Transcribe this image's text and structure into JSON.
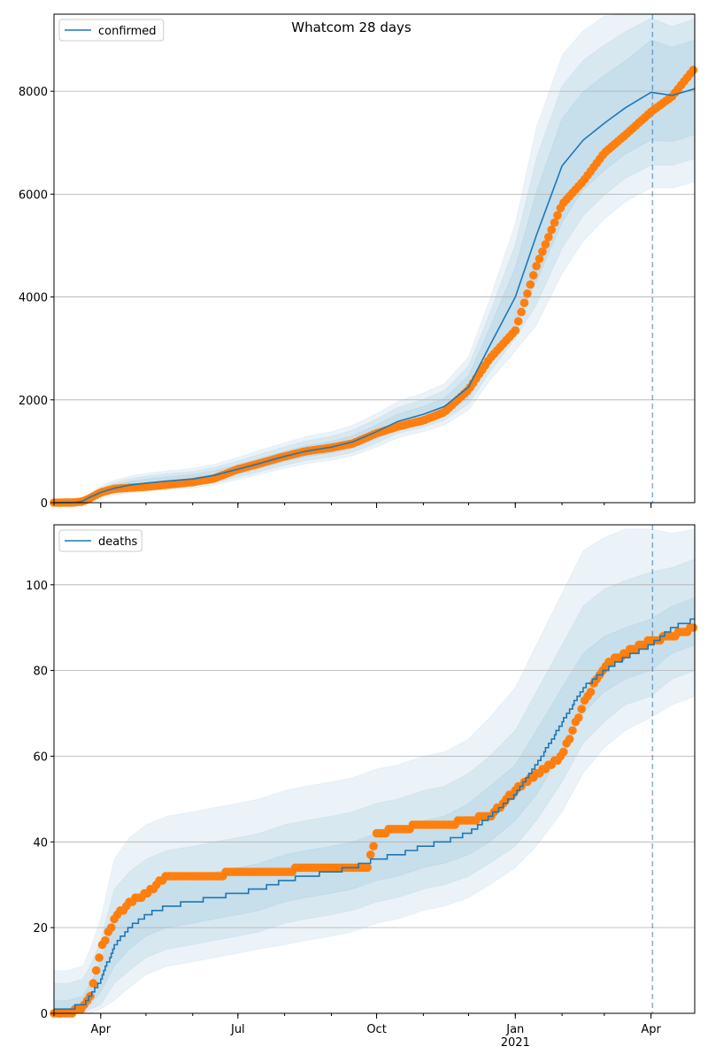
{
  "chart_data": [
    {
      "type": "line",
      "title": "Whatcom 28 days",
      "legend": {
        "placement": "top-left",
        "entries": [
          "confirmed"
        ]
      },
      "grid": "horizontal",
      "xlim": [
        "2020-03-01",
        "2021-04-30"
      ],
      "ylim": [
        0,
        9500
      ],
      "yticks": [
        0,
        2000,
        4000,
        6000,
        8000
      ],
      "xticks": [
        {
          "date": "2020-04-01",
          "label": "Apr",
          "sub": ""
        },
        {
          "date": "2020-07-01",
          "label": "Jul",
          "sub": ""
        },
        {
          "date": "2020-10-01",
          "label": "Oct",
          "sub": ""
        },
        {
          "date": "2021-01-01",
          "label": "Jan",
          "sub": "2021"
        },
        {
          "date": "2021-04-01",
          "label": "Apr",
          "sub": ""
        }
      ],
      "forecast_start": "2021-04-02",
      "colors": {
        "model": "#1f77b4",
        "observed": "#ff7f0e",
        "band": "#1f77b4"
      },
      "series": [
        {
          "name": "confirmed",
          "x": [
            "2020-03-01",
            "2020-03-15",
            "2020-03-20",
            "2020-03-25",
            "2020-04-01",
            "2020-04-10",
            "2020-04-20",
            "2020-05-01",
            "2020-05-15",
            "2020-06-01",
            "2020-06-15",
            "2020-07-01",
            "2020-07-15",
            "2020-08-01",
            "2020-08-15",
            "2020-09-01",
            "2020-09-15",
            "2020-10-01",
            "2020-10-15",
            "2020-11-01",
            "2020-11-15",
            "2020-12-01",
            "2020-12-15",
            "2021-01-01",
            "2021-01-15",
            "2021-02-01",
            "2021-02-15",
            "2021-03-01",
            "2021-03-15",
            "2021-04-01",
            "2021-04-15",
            "2021-04-30"
          ],
          "y": [
            0,
            5,
            30,
            110,
            200,
            280,
            340,
            380,
            420,
            460,
            530,
            650,
            760,
            900,
            1000,
            1080,
            1180,
            1380,
            1580,
            1720,
            1870,
            2250,
            3050,
            4000,
            5200,
            6550,
            7050,
            7380,
            7680,
            7980,
            7920,
            8050
          ]
        },
        {
          "name": "observed confirmed",
          "x": [
            "2020-03-01",
            "2020-03-15",
            "2020-03-20",
            "2020-03-25",
            "2020-04-01",
            "2020-04-10",
            "2020-04-20",
            "2020-05-01",
            "2020-05-15",
            "2020-06-01",
            "2020-06-15",
            "2020-07-01",
            "2020-07-15",
            "2020-08-01",
            "2020-08-15",
            "2020-09-01",
            "2020-09-15",
            "2020-10-01",
            "2020-10-15",
            "2020-11-01",
            "2020-11-15",
            "2020-12-01",
            "2020-12-15",
            "2021-01-01",
            "2021-01-15",
            "2021-02-01",
            "2021-02-15",
            "2021-03-01",
            "2021-03-15",
            "2021-04-01",
            "2021-04-15",
            "2021-04-30"
          ],
          "y": [
            0,
            5,
            25,
            90,
            200,
            270,
            290,
            310,
            350,
            400,
            470,
            650,
            760,
            900,
            1000,
            1070,
            1150,
            1350,
            1480,
            1600,
            1760,
            2200,
            2800,
            3350,
            4600,
            5800,
            6250,
            6800,
            7150,
            7600,
            7900,
            8450
          ]
        }
      ],
      "bands_lower": [
        [
          0,
          3,
          18,
          75,
          150,
          215,
          265,
          300,
          335,
          375,
          440,
          560,
          660,
          800,
          890,
          965,
          1055,
          1245,
          1435,
          1565,
          1705,
          2040,
          2720,
          3480,
          4300,
          5450,
          6080,
          6460,
          6780,
          7050,
          7020,
          7160
        ],
        [
          0,
          2,
          13,
          58,
          120,
          180,
          225,
          260,
          290,
          325,
          385,
          500,
          600,
          730,
          820,
          890,
          980,
          1160,
          1345,
          1470,
          1605,
          1920,
          2540,
          3200,
          3850,
          4950,
          5580,
          5980,
          6310,
          6560,
          6560,
          6690
        ],
        [
          0,
          1,
          8,
          40,
          90,
          145,
          190,
          225,
          250,
          285,
          340,
          450,
          545,
          670,
          755,
          825,
          910,
          1080,
          1260,
          1380,
          1510,
          1800,
          2370,
          2950,
          3450,
          4450,
          5080,
          5520,
          5850,
          6120,
          6120,
          6240
        ]
      ],
      "bands_upper": [
        [
          0,
          8,
          45,
          145,
          250,
          345,
          415,
          460,
          505,
          545,
          620,
          740,
          860,
          1000,
          1110,
          1195,
          1305,
          1515,
          1725,
          1875,
          2035,
          2470,
          3390,
          4580,
          6050,
          7470,
          7990,
          8310,
          8590,
          9000,
          8860,
          9000
        ],
        [
          0,
          11,
          55,
          165,
          285,
          390,
          465,
          515,
          565,
          605,
          685,
          810,
          940,
          1085,
          1200,
          1290,
          1410,
          1630,
          1850,
          2010,
          2180,
          2660,
          3680,
          5020,
          6700,
          8100,
          8600,
          8900,
          9160,
          9420,
          9260,
          9410
        ],
        [
          0,
          14,
          65,
          185,
          320,
          435,
          515,
          570,
          620,
          665,
          745,
          880,
          1015,
          1165,
          1285,
          1380,
          1505,
          1735,
          1965,
          2135,
          2315,
          2840,
          3950,
          5430,
          7300,
          8700,
          9180,
          9460,
          9540,
          9620,
          9540,
          9700
        ]
      ]
    },
    {
      "type": "line",
      "title": "",
      "legend": {
        "placement": "top-left",
        "entries": [
          "deaths"
        ]
      },
      "grid": "horizontal",
      "xlim": [
        "2020-03-01",
        "2021-04-30"
      ],
      "ylim": [
        0,
        114
      ],
      "yticks": [
        0,
        20,
        40,
        60,
        80,
        100
      ],
      "xticks": [
        {
          "date": "2020-04-01",
          "label": "Apr",
          "sub": ""
        },
        {
          "date": "2020-07-01",
          "label": "Jul",
          "sub": ""
        },
        {
          "date": "2020-10-01",
          "label": "Oct",
          "sub": ""
        },
        {
          "date": "2021-01-01",
          "label": "Jan",
          "sub": "2021"
        },
        {
          "date": "2021-04-01",
          "label": "Apr",
          "sub": ""
        }
      ],
      "forecast_start": "2021-04-02",
      "colors": {
        "model": "#1f77b4",
        "observed": "#ff7f0e",
        "band": "#1f77b4"
      },
      "series": [
        {
          "name": "deaths",
          "x": [
            "2020-03-01",
            "2020-03-10",
            "2020-03-20",
            "2020-03-25",
            "2020-04-01",
            "2020-04-10",
            "2020-04-20",
            "2020-05-01",
            "2020-05-15",
            "2020-06-01",
            "2020-06-15",
            "2020-07-01",
            "2020-07-15",
            "2020-08-01",
            "2020-08-15",
            "2020-09-01",
            "2020-09-15",
            "2020-10-01",
            "2020-10-15",
            "2020-11-01",
            "2020-11-15",
            "2020-12-01",
            "2020-12-15",
            "2021-01-01",
            "2021-01-15",
            "2021-02-01",
            "2021-02-15",
            "2021-03-01",
            "2021-03-15",
            "2021-04-01",
            "2021-04-15",
            "2021-04-30"
          ],
          "y": [
            1,
            1,
            2,
            4,
            8,
            16,
            20,
            23,
            25,
            26,
            27,
            28,
            29,
            31,
            32,
            33,
            34,
            36,
            37,
            39,
            40,
            42,
            46,
            51,
            58,
            68,
            76,
            80,
            83,
            86,
            90,
            92
          ]
        },
        {
          "name": "observed deaths",
          "x": [
            "2020-03-01",
            "2020-03-10",
            "2020-03-20",
            "2020-03-25",
            "2020-04-01",
            "2020-04-10",
            "2020-04-20",
            "2020-05-01",
            "2020-05-15",
            "2020-06-01",
            "2020-06-15",
            "2020-07-01",
            "2020-07-15",
            "2020-08-01",
            "2020-08-15",
            "2020-09-01",
            "2020-09-15",
            "2020-09-25",
            "2020-10-01",
            "2020-10-15",
            "2020-11-01",
            "2020-11-15",
            "2020-12-01",
            "2020-12-15",
            "2021-01-01",
            "2021-01-15",
            "2021-02-01",
            "2021-02-15",
            "2021-03-01",
            "2021-03-15",
            "2021-04-01",
            "2021-04-15",
            "2021-04-30"
          ],
          "y": [
            0,
            0,
            1,
            4,
            15,
            22,
            26,
            28,
            32,
            32,
            32,
            33,
            33,
            33,
            34,
            34,
            34,
            34,
            42,
            43,
            44,
            44,
            45,
            46,
            52,
            56,
            60,
            72,
            81,
            84,
            87,
            88,
            90
          ]
        }
      ],
      "bands_lower": [
        [
          0,
          0,
          1,
          2,
          5,
          11,
          15,
          18,
          20,
          21,
          22,
          23,
          24,
          26,
          27,
          28,
          29,
          31,
          32,
          34,
          35,
          37,
          40,
          45,
          51,
          61,
          70,
          75,
          78,
          80,
          84,
          86
        ],
        [
          0,
          0,
          0,
          1,
          2,
          7,
          10,
          13,
          15,
          16,
          17,
          18,
          19,
          21,
          22,
          23,
          24,
          26,
          27,
          29,
          30,
          32,
          35,
          39,
          45,
          54,
          63,
          68,
          72,
          74,
          78,
          80
        ],
        [
          0,
          0,
          0,
          0,
          1,
          3,
          6,
          9,
          11,
          12,
          13,
          14,
          15,
          16,
          17,
          18,
          19,
          21,
          22,
          24,
          25,
          27,
          30,
          34,
          39,
          47,
          56,
          62,
          66,
          69,
          72,
          74
        ]
      ],
      "bands_upper": [
        [
          3,
          3,
          4,
          7,
          12,
          22,
          26,
          29,
          31,
          32,
          33,
          34,
          35,
          37,
          38,
          39,
          40,
          42,
          43,
          45,
          46,
          49,
          53,
          58,
          66,
          76,
          84,
          88,
          90,
          92,
          95,
          97
        ],
        [
          7,
          7,
          8,
          11,
          17,
          29,
          33,
          36,
          38,
          39,
          40,
          41,
          42,
          44,
          45,
          46,
          47,
          49,
          50,
          52,
          53,
          56,
          60,
          66,
          75,
          86,
          95,
          99,
          101,
          103,
          104,
          106
        ],
        [
          10,
          10,
          11,
          15,
          22,
          36,
          41,
          44,
          46,
          47,
          48,
          49,
          50,
          52,
          53,
          54,
          55,
          57,
          58,
          60,
          61,
          64,
          69,
          76,
          86,
          98,
          108,
          111,
          113,
          113,
          112,
          113
        ]
      ]
    }
  ]
}
